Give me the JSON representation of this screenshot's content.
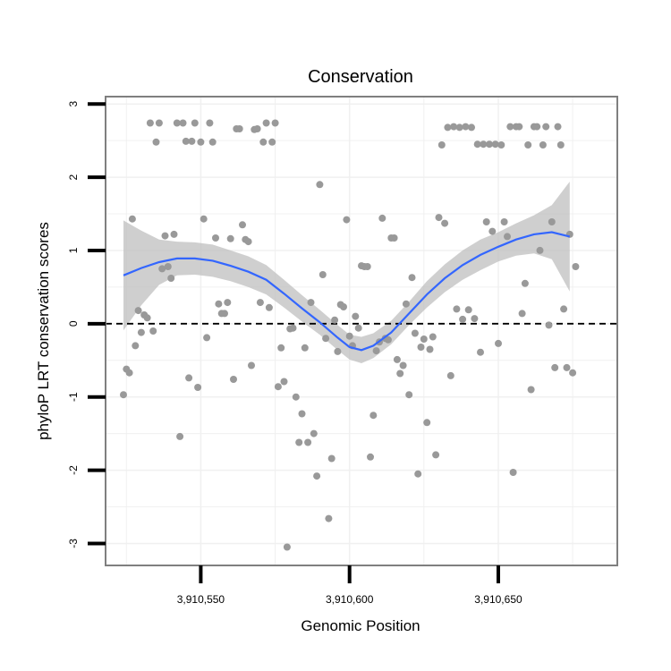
{
  "chart_data": {
    "type": "scatter",
    "title": "Conservation",
    "xlabel": "Genomic Position",
    "ylabel": "phyloP LRT conservation scores",
    "xlim": [
      3910518,
      3910690
    ],
    "ylim": [
      -3.3,
      3.1
    ],
    "x_ticks": [
      3910550,
      3910600,
      3910650
    ],
    "x_tick_labels": [
      "3,910,550",
      "3,910,600",
      "3,910,650"
    ],
    "y_ticks": [
      -3,
      -2,
      -1,
      0,
      1,
      2,
      3
    ],
    "y_tick_labels": [
      "-3",
      "-2",
      "-1",
      "0",
      "1",
      "2",
      "3"
    ],
    "grid": true,
    "reference_line": {
      "y": 0,
      "style": "dashed"
    },
    "colors": {
      "points": "#999999",
      "smooth": "#3366ff",
      "band": "#bfbfbf",
      "frame": "#7f7f7f",
      "grid": "#f0f0f0"
    },
    "points": [
      [
        3910524,
        -0.97
      ],
      [
        3910525,
        -0.62
      ],
      [
        3910526,
        -0.67
      ],
      [
        3910527,
        1.43
      ],
      [
        3910528,
        -0.3
      ],
      [
        3910529,
        0.18
      ],
      [
        3910530,
        -0.12
      ],
      [
        3910531,
        0.12
      ],
      [
        3910532,
        0.08
      ],
      [
        3910533,
        2.74
      ],
      [
        3910534,
        -0.1
      ],
      [
        3910535,
        2.48
      ],
      [
        3910536,
        2.74
      ],
      [
        3910537,
        0.75
      ],
      [
        3910538,
        1.2
      ],
      [
        3910539,
        0.78
      ],
      [
        3910540,
        0.62
      ],
      [
        3910541,
        1.22
      ],
      [
        3910542,
        2.74
      ],
      [
        3910543,
        -1.54
      ],
      [
        3910544,
        2.74
      ],
      [
        3910545,
        2.49
      ],
      [
        3910546,
        -0.74
      ],
      [
        3910547,
        2.49
      ],
      [
        3910548,
        2.74
      ],
      [
        3910549,
        -0.87
      ],
      [
        3910550,
        2.48
      ],
      [
        3910551,
        1.43
      ],
      [
        3910552,
        -0.19
      ],
      [
        3910553,
        2.74
      ],
      [
        3910554,
        2.48
      ],
      [
        3910555,
        1.17
      ],
      [
        3910556,
        0.27
      ],
      [
        3910557,
        0.14
      ],
      [
        3910558,
        0.14
      ],
      [
        3910559,
        0.29
      ],
      [
        3910560,
        1.16
      ],
      [
        3910561,
        -0.76
      ],
      [
        3910562,
        2.66
      ],
      [
        3910563,
        2.66
      ],
      [
        3910564,
        1.35
      ],
      [
        3910565,
        1.15
      ],
      [
        3910566,
        1.12
      ],
      [
        3910567,
        -0.57
      ],
      [
        3910568,
        2.65
      ],
      [
        3910569,
        2.66
      ],
      [
        3910570,
        0.29
      ],
      [
        3910571,
        2.48
      ],
      [
        3910572,
        2.74
      ],
      [
        3910573,
        0.22
      ],
      [
        3910574,
        2.48
      ],
      [
        3910575,
        2.74
      ],
      [
        3910576,
        -0.86
      ],
      [
        3910577,
        -0.33
      ],
      [
        3910578,
        -0.79
      ],
      [
        3910579,
        -3.05
      ],
      [
        3910580,
        -0.07
      ],
      [
        3910581,
        -0.06
      ],
      [
        3910582,
        -1.0
      ],
      [
        3910583,
        -1.62
      ],
      [
        3910584,
        -1.23
      ],
      [
        3910585,
        -0.33
      ],
      [
        3910586,
        -1.62
      ],
      [
        3910587,
        0.29
      ],
      [
        3910588,
        -1.5
      ],
      [
        3910589,
        -2.08
      ],
      [
        3910590,
        1.9
      ],
      [
        3910591,
        0.67
      ],
      [
        3910592,
        -0.2
      ],
      [
        3910593,
        -2.66
      ],
      [
        3910594,
        -1.84
      ],
      [
        3910595,
        0.05
      ],
      [
        3910596,
        -0.38
      ],
      [
        3910597,
        0.26
      ],
      [
        3910598,
        0.23
      ],
      [
        3910599,
        1.42
      ],
      [
        3910600,
        -0.17
      ],
      [
        3910601,
        -0.3
      ],
      [
        3910602,
        0.1
      ],
      [
        3910603,
        -0.06
      ],
      [
        3910604,
        0.79
      ],
      [
        3910605,
        0.78
      ],
      [
        3910606,
        0.78
      ],
      [
        3910607,
        -1.82
      ],
      [
        3910608,
        -1.25
      ],
      [
        3910609,
        -0.37
      ],
      [
        3910610,
        -0.25
      ],
      [
        3910611,
        1.44
      ],
      [
        3910612,
        -0.2
      ],
      [
        3910613,
        -0.22
      ],
      [
        3910614,
        1.17
      ],
      [
        3910615,
        1.17
      ],
      [
        3910616,
        -0.49
      ],
      [
        3910617,
        -0.68
      ],
      [
        3910618,
        -0.57
      ],
      [
        3910619,
        0.27
      ],
      [
        3910620,
        -0.97
      ],
      [
        3910621,
        0.63
      ],
      [
        3910622,
        -0.13
      ],
      [
        3910623,
        -2.05
      ],
      [
        3910624,
        -0.32
      ],
      [
        3910625,
        -0.21
      ],
      [
        3910626,
        -1.35
      ],
      [
        3910627,
        -0.35
      ],
      [
        3910628,
        -0.18
      ],
      [
        3910629,
        -1.79
      ],
      [
        3910630,
        1.45
      ],
      [
        3910631,
        2.44
      ],
      [
        3910632,
        1.37
      ],
      [
        3910633,
        2.68
      ],
      [
        3910634,
        -0.71
      ],
      [
        3910635,
        2.69
      ],
      [
        3910636,
        0.2
      ],
      [
        3910637,
        2.68
      ],
      [
        3910638,
        0.06
      ],
      [
        3910639,
        2.69
      ],
      [
        3910640,
        0.19
      ],
      [
        3910641,
        2.68
      ],
      [
        3910642,
        0.07
      ],
      [
        3910643,
        2.45
      ],
      [
        3910644,
        -0.39
      ],
      [
        3910645,
        2.45
      ],
      [
        3910646,
        1.39
      ],
      [
        3910647,
        2.45
      ],
      [
        3910648,
        1.26
      ],
      [
        3910649,
        2.45
      ],
      [
        3910650,
        -0.27
      ],
      [
        3910651,
        2.44
      ],
      [
        3910652,
        1.39
      ],
      [
        3910653,
        1.19
      ],
      [
        3910654,
        2.69
      ],
      [
        3910655,
        -2.03
      ],
      [
        3910656,
        2.69
      ],
      [
        3910657,
        2.69
      ],
      [
        3910658,
        0.14
      ],
      [
        3910659,
        0.55
      ],
      [
        3910660,
        2.44
      ],
      [
        3910661,
        -0.9
      ],
      [
        3910662,
        2.69
      ],
      [
        3910663,
        2.69
      ],
      [
        3910664,
        1.0
      ],
      [
        3910665,
        2.44
      ],
      [
        3910666,
        2.69
      ],
      [
        3910667,
        -0.02
      ],
      [
        3910668,
        1.39
      ],
      [
        3910669,
        -0.6
      ],
      [
        3910670,
        2.69
      ],
      [
        3910671,
        2.44
      ],
      [
        3910672,
        0.2
      ],
      [
        3910673,
        -0.6
      ],
      [
        3910674,
        1.22
      ],
      [
        3910675,
        -0.67
      ],
      [
        3910676,
        0.78
      ]
    ],
    "smooth_x": [
      3910524,
      3910530,
      3910536,
      3910542,
      3910548,
      3910554,
      3910560,
      3910566,
      3910572,
      3910578,
      3910584,
      3910590,
      3910596,
      3910600,
      3910604,
      3910608,
      3910614,
      3910620,
      3910626,
      3910632,
      3910638,
      3910644,
      3910650,
      3910656,
      3910662,
      3910668,
      3910674
    ],
    "smooth_y": [
      0.66,
      0.76,
      0.84,
      0.89,
      0.89,
      0.86,
      0.79,
      0.71,
      0.6,
      0.41,
      0.21,
      0.02,
      -0.19,
      -0.32,
      -0.36,
      -0.3,
      -0.12,
      0.14,
      0.4,
      0.62,
      0.8,
      0.94,
      1.05,
      1.15,
      1.22,
      1.25,
      1.19
    ],
    "band_lower": [
      -0.09,
      0.25,
      0.53,
      0.66,
      0.67,
      0.64,
      0.58,
      0.5,
      0.4,
      0.22,
      0.03,
      -0.15,
      -0.36,
      -0.49,
      -0.54,
      -0.47,
      -0.28,
      -0.02,
      0.22,
      0.43,
      0.6,
      0.73,
      0.85,
      0.93,
      0.96,
      0.88,
      0.44
    ],
    "band_upper": [
      1.41,
      1.27,
      1.15,
      1.12,
      1.11,
      1.08,
      1.0,
      0.92,
      0.8,
      0.6,
      0.39,
      0.19,
      -0.02,
      -0.15,
      -0.18,
      -0.13,
      0.04,
      0.3,
      0.58,
      0.81,
      1.0,
      1.15,
      1.25,
      1.37,
      1.48,
      1.62,
      1.94
    ]
  }
}
